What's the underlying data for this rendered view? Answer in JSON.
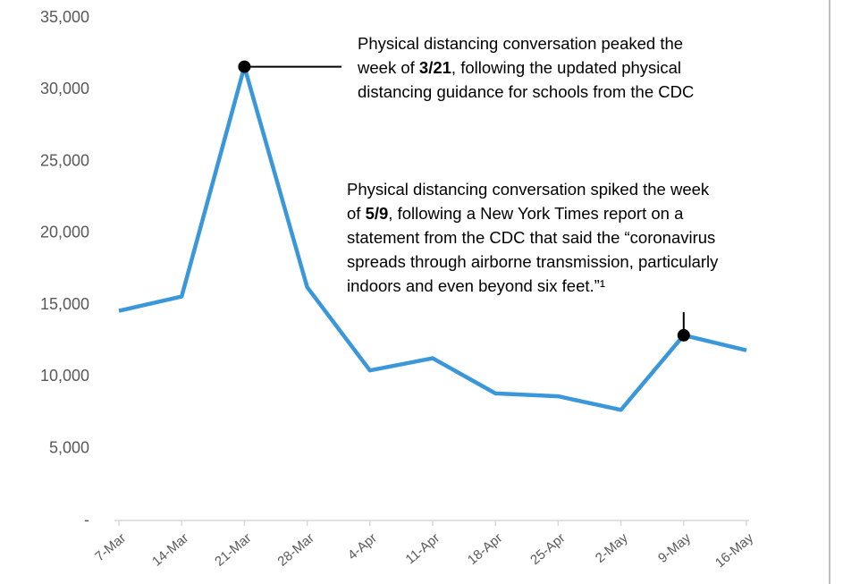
{
  "chart_data": {
    "type": "line",
    "categories": [
      "7-Mar",
      "14-Mar",
      "21-Mar",
      "28-Mar",
      "4-Apr",
      "11-Apr",
      "18-Apr",
      "25-Apr",
      "2-May",
      "9-May",
      "16-May"
    ],
    "values": [
      14600,
      15600,
      31600,
      16250,
      10450,
      11300,
      8850,
      8650,
      7700,
      12900,
      11850
    ],
    "color": "#3a97d9",
    "ylim": [
      0,
      35000
    ],
    "yticks": [
      {
        "value": 0,
        "label": "-"
      },
      {
        "value": 5000,
        "label": "5,000"
      },
      {
        "value": 10000,
        "label": "10,000"
      },
      {
        "value": 15000,
        "label": "15,000"
      },
      {
        "value": 20000,
        "label": "20,000"
      },
      {
        "value": 25000,
        "label": "25,000"
      },
      {
        "value": 30000,
        "label": "30,000"
      },
      {
        "value": 35000,
        "label": "35,000"
      }
    ],
    "annotations": [
      {
        "x": "21-Mar",
        "lines": [
          [
            {
              "text": "Physical distancing conversation peaked the"
            }
          ],
          [
            {
              "text": "week of "
            },
            {
              "text": "3/21",
              "bold": true
            },
            {
              "text": ", following the updated physical"
            }
          ],
          [
            {
              "text": "distancing guidance for schools from the CDC"
            }
          ]
        ]
      },
      {
        "x": "9-May",
        "lines": [
          [
            {
              "text": "Physical distancing conversation spiked the week"
            }
          ],
          [
            {
              "text": "of "
            },
            {
              "text": "5/9",
              "bold": true
            },
            {
              "text": ", following a New York Times report on a"
            }
          ],
          [
            {
              "text": "statement from the CDC that said the “coronavirus"
            }
          ],
          [
            {
              "text": "spreads through airborne transmission, particularly"
            }
          ],
          [
            {
              "text": "indoors and even beyond six feet.”¹"
            }
          ]
        ]
      }
    ]
  }
}
